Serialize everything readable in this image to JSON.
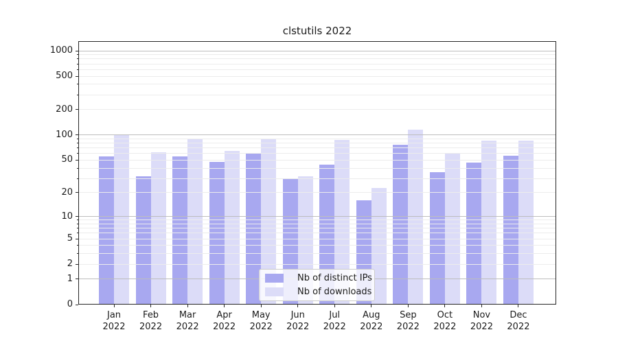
{
  "chart_data": {
    "type": "bar",
    "title": "clstutils 2022",
    "categories": [
      "Jan 2022",
      "Feb 2022",
      "Mar 2022",
      "Apr 2022",
      "May 2022",
      "Jun 2022",
      "Jul 2022",
      "Aug 2022",
      "Sep 2022",
      "Oct 2022",
      "Nov 2022",
      "Dec 2022"
    ],
    "series": [
      {
        "name": "Nb of distinct IPs",
        "color": "#a8a8f0",
        "values": [
          55,
          32,
          55,
          48,
          60,
          30,
          44,
          16,
          76,
          36,
          47,
          57
        ]
      },
      {
        "name": "Nb of downloads",
        "color": "#dcdcf8",
        "values": [
          100,
          62,
          90,
          65,
          90,
          32,
          87,
          23,
          115,
          61,
          85,
          85
        ]
      }
    ],
    "y_axis": {
      "scale": "log1p",
      "tick_values": [
        0,
        1,
        2,
        5,
        10,
        20,
        50,
        100,
        200,
        500,
        1000
      ],
      "tick_labels": [
        "0",
        "1",
        "2",
        "5",
        "10",
        "20",
        "50",
        "100",
        "200",
        "500",
        "1000"
      ],
      "ylim": [
        0,
        1300
      ],
      "grid": true
    },
    "legend_position": "lower center",
    "grid_major_color": "#bdbdbd",
    "grid_minor_color": "#ececec"
  }
}
